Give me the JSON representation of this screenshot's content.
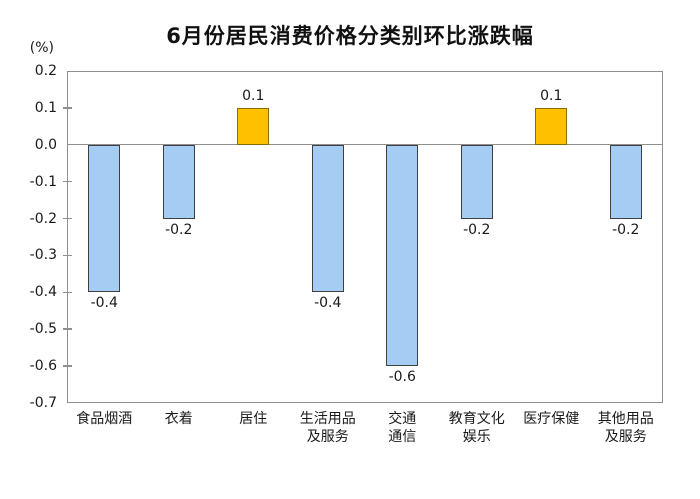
{
  "chart_data": {
    "type": "bar",
    "title": "6月份居民消费价格分类别环比涨跌幅",
    "unit_label": "(%)",
    "xlabel": "",
    "ylabel": "(%)",
    "ylim": [
      -0.7,
      0.2
    ],
    "grid": false,
    "legend": false,
    "categories": [
      "食品烟酒",
      "衣着",
      "居住",
      "生活用品及服务",
      "交通通信",
      "教育文化娱乐",
      "医疗保健",
      "其他用品及服务"
    ],
    "category_lines": [
      [
        "食品烟酒"
      ],
      [
        "衣着"
      ],
      [
        "居住"
      ],
      [
        "生活用品",
        "及服务"
      ],
      [
        "交通",
        "通信"
      ],
      [
        "教育文化",
        "娱乐"
      ],
      [
        "医疗保健"
      ],
      [
        "其他用品",
        "及服务"
      ]
    ],
    "values": [
      -0.4,
      -0.2,
      0.1,
      -0.4,
      -0.6,
      -0.2,
      0.1,
      -0.2
    ],
    "value_labels": [
      "-0.4",
      "-0.2",
      "0.1",
      "-0.4",
      "-0.6",
      "-0.2",
      "0.1",
      "-0.2"
    ],
    "y_ticks": [
      "0.2",
      "0.1",
      "0.0",
      "-0.1",
      "-0.2",
      "-0.3",
      "-0.4",
      "-0.5",
      "-0.6",
      "-0.7"
    ],
    "colors": {
      "background": "#FFFFFF",
      "text": "#1A1A1A",
      "axis_line": "#8F8F8F",
      "positive_fill": "#FFC000",
      "positive_border": "#8A6D00",
      "negative_fill": "#A5CDF4",
      "negative_border": "#404040"
    }
  }
}
